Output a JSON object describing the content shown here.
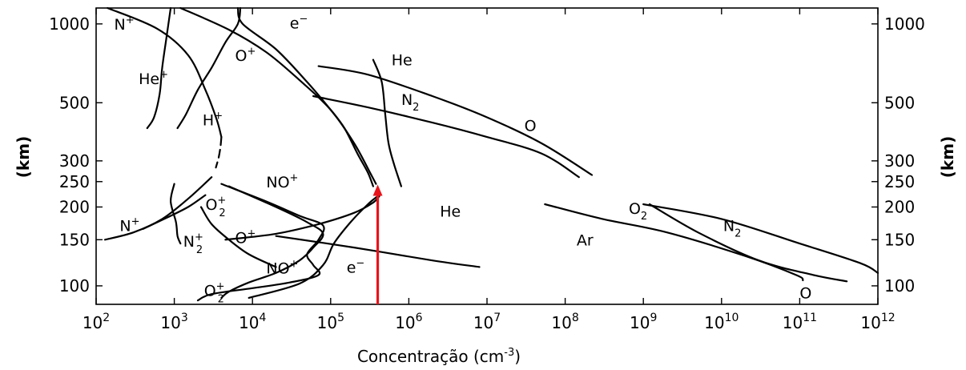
{
  "chart_data": {
    "type": "line",
    "xlabel": "Concentração (cm",
    "xlabel_sup": "-3",
    "xlabel_close": ")",
    "ylabel_left": "(km)",
    "ylabel_right": "(km)",
    "x_scale": "log",
    "y_scale": "log",
    "xlim": [
      100,
      1000000000000
    ],
    "ylim": [
      85,
      1150
    ],
    "x_ticks": [
      {
        "value": 100,
        "base": "10",
        "exp": "2"
      },
      {
        "value": 1000,
        "base": "10",
        "exp": "3"
      },
      {
        "value": 10000,
        "base": "10",
        "exp": "4"
      },
      {
        "value": 100000,
        "base": "10",
        "exp": "5"
      },
      {
        "value": 1000000,
        "base": "10",
        "exp": "6"
      },
      {
        "value": 10000000,
        "base": "10",
        "exp": "7"
      },
      {
        "value": 100000000,
        "base": "10",
        "exp": "8"
      },
      {
        "value": 1000000000,
        "base": "10",
        "exp": "9"
      },
      {
        "value": 10000000000,
        "base": "10",
        "exp": "10"
      },
      {
        "value": 100000000000,
        "base": "10",
        "exp": "11"
      },
      {
        "value": 1000000000000,
        "base": "10",
        "exp": "12"
      }
    ],
    "y_ticks": [
      {
        "value": 100,
        "label": "100"
      },
      {
        "value": 150,
        "label": "150"
      },
      {
        "value": 200,
        "label": "200"
      },
      {
        "value": 250,
        "label": "250"
      },
      {
        "value": 300,
        "label": "300"
      },
      {
        "value": 500,
        "label": "500"
      },
      {
        "value": 1000,
        "label": "1000"
      }
    ],
    "marker": {
      "x": 400000,
      "y_from": 85,
      "y_to": 240,
      "color": "#e8141b"
    },
    "series": [
      {
        "name": "N+",
        "points": [
          [
            140,
            1150
          ],
          [
            600,
            960
          ],
          [
            1500,
            760
          ],
          [
            2500,
            560
          ],
          [
            3500,
            430
          ],
          [
            4000,
            370
          ]
        ]
      },
      {
        "name": "N+",
        "dashed": true,
        "points": [
          [
            4000,
            370
          ],
          [
            3900,
            340
          ],
          [
            3700,
            310
          ],
          [
            3400,
            283
          ]
        ]
      },
      {
        "name": "N+",
        "points": [
          [
            3000,
            260
          ],
          [
            1500,
            215
          ],
          [
            700,
            180
          ],
          [
            300,
            160
          ],
          [
            130,
            150
          ]
        ]
      },
      {
        "name": "He+",
        "points": [
          [
            900,
            1150
          ],
          [
            800,
            900
          ],
          [
            700,
            680
          ],
          [
            650,
            540
          ],
          [
            550,
            440
          ],
          [
            450,
            400
          ]
        ]
      },
      {
        "name": "H+",
        "points": [
          [
            7000,
            1150
          ],
          [
            6500,
            1000
          ],
          [
            4500,
            850
          ],
          [
            3000,
            680
          ],
          [
            2000,
            560
          ],
          [
            1400,
            450
          ],
          [
            1100,
            400
          ]
        ]
      },
      {
        "name": "e-",
        "points": [
          [
            6500,
            1150
          ],
          [
            7500,
            1000
          ],
          [
            20000,
            800
          ],
          [
            50000,
            600
          ],
          [
            100000,
            470
          ],
          [
            150000,
            400
          ],
          [
            220000,
            320
          ],
          [
            300000,
            270
          ],
          [
            350000,
            240
          ]
        ]
      },
      {
        "name": "O+",
        "points": [
          [
            1200,
            1150
          ],
          [
            5000,
            950
          ],
          [
            15000,
            780
          ],
          [
            40000,
            610
          ],
          [
            100000,
            470
          ],
          [
            200000,
            350
          ],
          [
            320000,
            270
          ],
          [
            380000,
            245
          ]
        ]
      },
      {
        "name": "He",
        "points": [
          [
            350000,
            730
          ],
          [
            450000,
            600
          ],
          [
            500000,
            450
          ],
          [
            550000,
            350
          ],
          [
            650000,
            290
          ],
          [
            800000,
            240
          ]
        ]
      },
      {
        "name": "N2",
        "points": [
          [
            60000,
            530
          ],
          [
            300000,
            480
          ],
          [
            2000000,
            420
          ],
          [
            10000000,
            370
          ],
          [
            50000000,
            320
          ],
          [
            150000000,
            260
          ]
        ]
      },
      {
        "name": "O",
        "points": [
          [
            70000,
            690
          ],
          [
            300000,
            640
          ],
          [
            2000000,
            530
          ],
          [
            10000000,
            440
          ],
          [
            50000000,
            350
          ],
          [
            220000000,
            265
          ]
        ]
      },
      {
        "name": "O+",
        "points": [
          [
            4500,
            150
          ],
          [
            20000,
            158
          ],
          [
            70000,
            172
          ],
          [
            200000,
            190
          ],
          [
            350000,
            208
          ],
          [
            420000,
            220
          ]
        ]
      },
      {
        "name": "e-",
        "points": [
          [
            9000,
            90
          ],
          [
            40000,
            102
          ],
          [
            80000,
            120
          ],
          [
            110000,
            145
          ],
          [
            180000,
            175
          ],
          [
            300000,
            205
          ],
          [
            400000,
            220
          ]
        ]
      },
      {
        "name": "NO+",
        "points": [
          [
            5000,
            240
          ],
          [
            20000,
            200
          ],
          [
            50000,
            175
          ],
          [
            80000,
            158
          ],
          [
            60000,
            140
          ],
          [
            40000,
            125
          ],
          [
            20000,
            112
          ],
          [
            9000,
            103
          ],
          [
            5000,
            95
          ],
          [
            4000,
            90
          ]
        ]
      },
      {
        "name": "O2+",
        "points": [
          [
            4000,
            245
          ],
          [
            15000,
            210
          ],
          [
            40000,
            185
          ],
          [
            80000,
            170
          ],
          [
            70000,
            150
          ],
          [
            50000,
            132
          ],
          [
            60000,
            120
          ],
          [
            70000,
            110
          ],
          [
            30000,
            103
          ],
          [
            10000,
            98
          ],
          [
            3000,
            93
          ],
          [
            2000,
            88
          ]
        ]
      },
      {
        "name": "N2+",
        "points": [
          [
            1000,
            245
          ],
          [
            900,
            210
          ],
          [
            1050,
            175
          ],
          [
            1100,
            155
          ],
          [
            1200,
            145
          ]
        ]
      },
      {
        "name": "N+",
        "points": [
          [
            2500,
            222
          ],
          [
            1500,
            200
          ],
          [
            800,
            182
          ],
          [
            400,
            165
          ]
        ]
      },
      {
        "name": "He",
        "points": [
          [
            2200,
            200
          ],
          [
            3000,
            172
          ],
          [
            5000,
            150
          ],
          [
            9000,
            132
          ],
          [
            20000,
            118
          ]
        ]
      },
      {
        "name": "Ar",
        "points": [
          [
            20000,
            155
          ],
          [
            200000,
            140
          ],
          [
            2000000,
            125
          ],
          [
            8000000,
            118
          ]
        ]
      },
      {
        "name": "O2",
        "points": [
          [
            55000000,
            205
          ],
          [
            300000000,
            180
          ],
          [
            2000000000,
            160
          ],
          [
            20000000000,
            130
          ],
          [
            90000000000,
            110
          ],
          [
            110000000000,
            105
          ]
        ]
      },
      {
        "name": "N2",
        "points": [
          [
            1000000000,
            205
          ],
          [
            10000000000,
            180
          ],
          [
            100000000000,
            145
          ],
          [
            600000000000,
            122
          ],
          [
            1000000000000,
            112
          ]
        ]
      },
      {
        "name": "O",
        "points": [
          [
            1200000000,
            205
          ],
          [
            5000000000,
            160
          ],
          [
            30000000000,
            125
          ],
          [
            150000000000,
            110
          ],
          [
            400000000000,
            104
          ]
        ]
      }
    ],
    "labels": [
      {
        "text": "N",
        "sup": "+",
        "x": 170,
        "y": 1000
      },
      {
        "text": "e",
        "sup": "−",
        "x": 30000,
        "y": 1010
      },
      {
        "text": "He",
        "sup": "+",
        "x": 350,
        "y": 620
      },
      {
        "text": "O",
        "sup": "+",
        "x": 6000,
        "y": 760
      },
      {
        "text": "He",
        "x": 600000,
        "y": 730
      },
      {
        "text": "H",
        "sup": "+",
        "x": 2300,
        "y": 430
      },
      {
        "text": "N",
        "sub": "2",
        "x": 800000,
        "y": 515
      },
      {
        "text": "O",
        "x": 30000000,
        "y": 410
      },
      {
        "text": "NO",
        "sup": "+",
        "x": 15000,
        "y": 250
      },
      {
        "text": "O",
        "sub": "2",
        "sup": "+",
        "x": 2500,
        "y": 205
      },
      {
        "text": "N",
        "sup": "+",
        "x": 200,
        "y": 170
      },
      {
        "text": "O",
        "sup": "+",
        "x": 6000,
        "y": 153
      },
      {
        "text": "N",
        "sub": "2",
        "sup": "+",
        "x": 1300,
        "y": 148
      },
      {
        "text": "NO",
        "sup": "+",
        "x": 15000,
        "y": 117
      },
      {
        "text": "e",
        "sup": "−",
        "x": 160000,
        "y": 118
      },
      {
        "text": "O",
        "sub": "2",
        "sup": "+",
        "x": 2400,
        "y": 96
      },
      {
        "text": "He",
        "x": 2500000,
        "y": 193
      },
      {
        "text": "Ar",
        "x": 140000000,
        "y": 150
      },
      {
        "text": "O",
        "sub": "2",
        "x": 650000000,
        "y": 198
      },
      {
        "text": "N",
        "sub": "2",
        "x": 10500000000,
        "y": 170
      },
      {
        "text": "O",
        "x": 100000000000,
        "y": 94
      }
    ]
  }
}
